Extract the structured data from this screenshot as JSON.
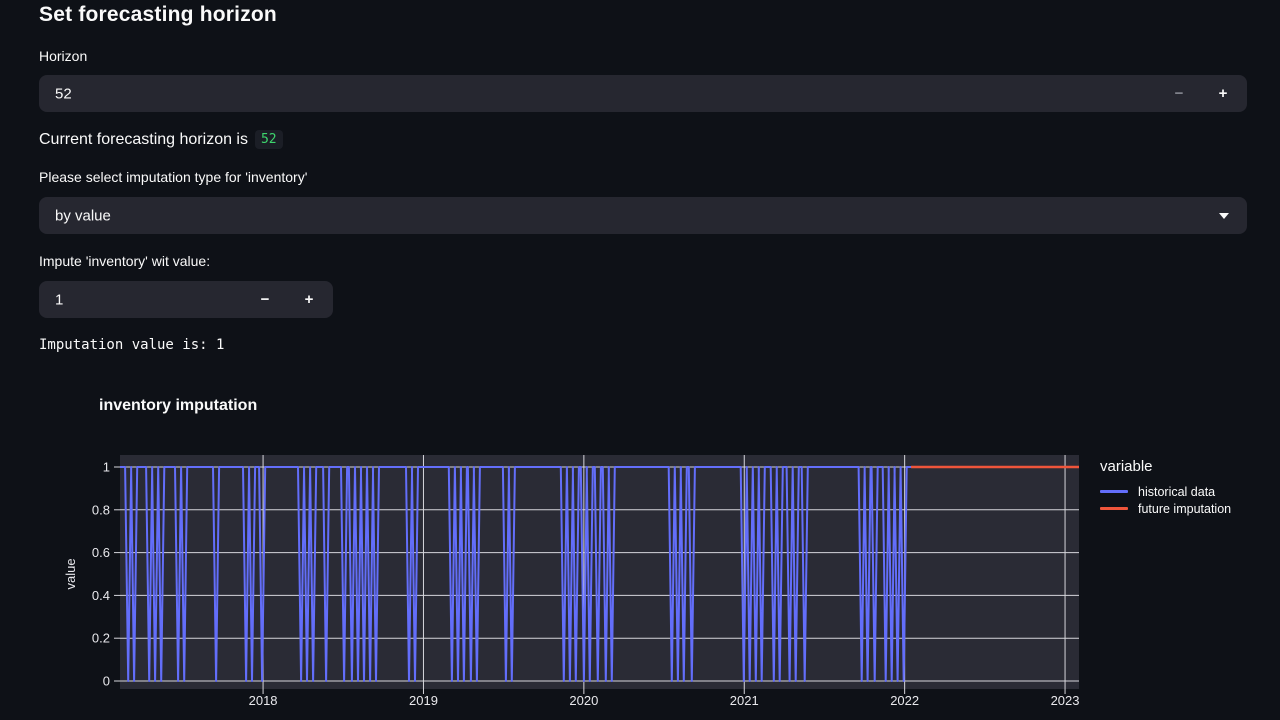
{
  "page": {
    "title": "Set forecasting horizon",
    "bg": "#0e1117"
  },
  "stepper": {
    "minus": "−",
    "plus": "+"
  },
  "horizon_input": {
    "label": "Horizon",
    "value": "52"
  },
  "horizon_caption": {
    "text": "Current forecasting horizon is",
    "code": "52"
  },
  "imputation_select": {
    "label": "Please select imputation type for 'inventory'",
    "value": "by value"
  },
  "impute_input": {
    "label": "Impute 'inventory' wit value:",
    "value": "1"
  },
  "imputation_text": "Imputation value is: 1",
  "colors": {
    "widget_bg": "#262730",
    "text": "#fafafa",
    "code_green": "#3dd56d"
  },
  "chart_data": {
    "type": "line",
    "title": "inventory imputation",
    "xlabel": "",
    "ylabel": "value",
    "legend_title": "variable",
    "x_domain": [
      2017.108,
      2023.087
    ],
    "y_domain": [
      0,
      1
    ],
    "x_ticks": [
      2018,
      2019,
      2020,
      2021,
      2022,
      2023
    ],
    "y_ticks": [
      0,
      0.2,
      0.4,
      0.6,
      0.8,
      1
    ],
    "grid": true,
    "legend_position": "right",
    "plot_bg": "#2a2b35",
    "grid_color": "#d6d6dc",
    "tick_color": "#e8e8ec",
    "dip_halfwidth_years": 0.019,
    "series": [
      {
        "name": "historical data",
        "color": "#636efa",
        "kind": "baseline-with-dips",
        "baseline": 1,
        "dip_value": 0,
        "x_start": 2017.108,
        "x_end": 2022.04,
        "dips_to_zero": [
          2017.159,
          2017.196,
          2017.29,
          2017.327,
          2017.365,
          2017.47,
          2017.508,
          2017.707,
          2017.894,
          2017.931,
          2017.994,
          2018.237,
          2018.274,
          2018.312,
          2018.393,
          2018.505,
          2018.554,
          2018.592,
          2018.629,
          2018.667,
          2018.704,
          2018.91,
          2018.947,
          2019.177,
          2019.215,
          2019.252,
          2019.296,
          2019.333,
          2019.514,
          2019.551,
          2019.875,
          2019.913,
          2019.95,
          2020.0,
          2020.037,
          2020.087,
          2020.137,
          2020.174,
          2020.548,
          2020.586,
          2020.623,
          2020.673,
          2020.997,
          2021.034,
          2021.072,
          2021.109,
          2021.184,
          2021.221,
          2021.283,
          2021.321,
          2021.377,
          2021.732,
          2021.769,
          2021.813,
          2021.882,
          2021.919,
          2021.956,
          2021.994
        ]
      },
      {
        "name": "future imputation",
        "color": "#ef553b",
        "kind": "constant",
        "value": 1,
        "x_start": 2022.04,
        "x_end": 2023.087
      }
    ]
  }
}
